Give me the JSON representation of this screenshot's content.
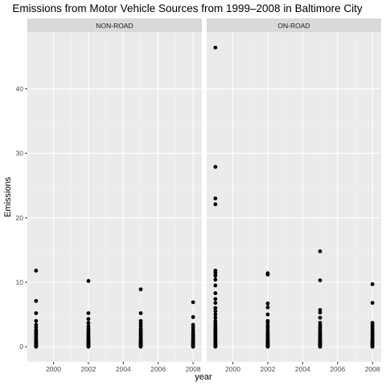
{
  "chart_data": {
    "type": "scatter",
    "title": "Emissions from Motor Vehicle Sources from 1999–2008 in Baltimore City",
    "xlabel": "year",
    "ylabel": "Emissions",
    "xlim": [
      1998.5,
      2008.5
    ],
    "ylim": [
      -2.35,
      48.8
    ],
    "x_ticks": [
      2000,
      2002,
      2004,
      2006,
      2008
    ],
    "y_ticks": [
      0,
      10,
      20,
      30,
      40
    ],
    "grid": true,
    "facets": [
      {
        "label": "NON-ROAD",
        "points": [
          {
            "x": 1999,
            "y": [
              0,
              0.05,
              0.1,
              0.15,
              0.2,
              0.3,
              0.4,
              0.5,
              0.6,
              0.7,
              0.8,
              0.9,
              1.0,
              1.2,
              1.4,
              1.6,
              1.8,
              2.0,
              2.2,
              2.4,
              2.6,
              3.0,
              3.4,
              4.0,
              5.2,
              7.1,
              11.8
            ]
          },
          {
            "x": 2002,
            "y": [
              0,
              0.05,
              0.1,
              0.15,
              0.2,
              0.3,
              0.4,
              0.5,
              0.6,
              0.7,
              0.8,
              0.9,
              1.0,
              1.2,
              1.4,
              1.6,
              1.8,
              2.0,
              2.2,
              2.5,
              2.8,
              3.2,
              3.7,
              4.3,
              5.2,
              10.2
            ]
          },
          {
            "x": 2005,
            "y": [
              0,
              0.05,
              0.1,
              0.15,
              0.2,
              0.3,
              0.4,
              0.5,
              0.6,
              0.7,
              0.8,
              0.9,
              1.0,
              1.2,
              1.4,
              1.6,
              1.8,
              2.0,
              2.2,
              2.5,
              2.8,
              3.2,
              3.6,
              4.0,
              5.2,
              8.9
            ]
          },
          {
            "x": 2008,
            "y": [
              0,
              0.05,
              0.1,
              0.15,
              0.2,
              0.3,
              0.4,
              0.5,
              0.6,
              0.7,
              0.8,
              0.9,
              1.0,
              1.2,
              1.4,
              1.6,
              1.8,
              2.0,
              2.3,
              2.6,
              3.0,
              3.4,
              4.6,
              6.9
            ]
          }
        ]
      },
      {
        "label": "ON-ROAD",
        "points": [
          {
            "x": 1999,
            "y": [
              0,
              0.05,
              0.1,
              0.2,
              0.3,
              0.4,
              0.5,
              0.6,
              0.7,
              0.8,
              0.9,
              1.0,
              1.2,
              1.4,
              1.6,
              1.8,
              2.0,
              2.2,
              2.4,
              2.6,
              2.8,
              3.0,
              3.3,
              3.6,
              4.0,
              4.5,
              5.0,
              5.5,
              6.0,
              6.8,
              7.4,
              8.3,
              9.5,
              10.4,
              11.0,
              11.4,
              11.8,
              22.1,
              23.0,
              27.9,
              46.4
            ]
          },
          {
            "x": 2002,
            "y": [
              0,
              0.05,
              0.1,
              0.2,
              0.3,
              0.4,
              0.5,
              0.6,
              0.7,
              0.8,
              0.9,
              1.0,
              1.2,
              1.4,
              1.6,
              1.8,
              2.0,
              2.2,
              2.4,
              2.7,
              3.0,
              3.3,
              3.7,
              4.0,
              5.0,
              6.1,
              6.7,
              11.2,
              11.4
            ]
          },
          {
            "x": 2005,
            "y": [
              0,
              0.05,
              0.1,
              0.2,
              0.3,
              0.4,
              0.5,
              0.6,
              0.7,
              0.8,
              0.9,
              1.0,
              1.2,
              1.4,
              1.6,
              1.8,
              2.0,
              2.2,
              2.4,
              2.7,
              3.0,
              3.3,
              3.7,
              4.5,
              5.3,
              5.7,
              10.3,
              14.8
            ]
          },
          {
            "x": 2008,
            "y": [
              0,
              0.05,
              0.1,
              0.2,
              0.3,
              0.4,
              0.5,
              0.6,
              0.7,
              0.8,
              0.9,
              1.0,
              1.2,
              1.4,
              1.6,
              1.8,
              2.0,
              2.2,
              2.5,
              2.8,
              3.1,
              3.4,
              3.7,
              6.8,
              9.7
            ]
          }
        ]
      }
    ]
  }
}
